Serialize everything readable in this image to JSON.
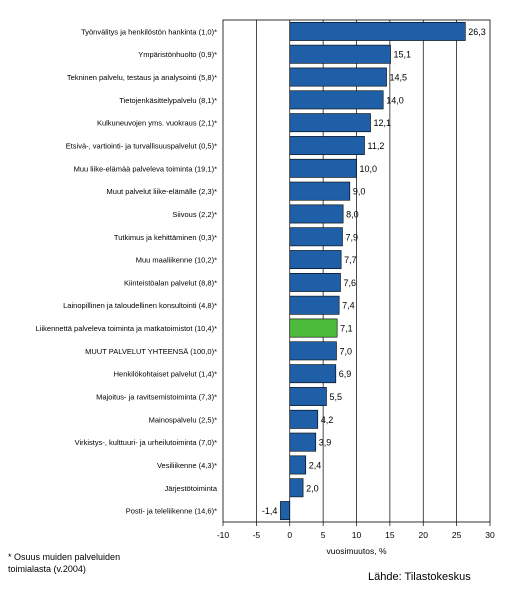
{
  "chart_data": {
    "type": "bar",
    "orientation": "horizontal",
    "categories": [
      "Työnvälitys ja henkilöstön hankinta (1,0)*",
      "Ympäristönhuolto (0,9)*",
      "Tekninen palvelu, testaus ja analysointi (5,8)*",
      "Tietojenkäsittelypalvelu (8,1)*",
      "Kulkuneuvojen yms. vuokraus (2,1)*",
      "Etsivä-, vartiointi- ja turvallisuuspalvelut (0,5)*",
      "Muu liike-elämää palveleva toiminta (19,1)*",
      "Muut palvelut liike-elämälle (2,3)*",
      "Siivous (2,2)*",
      "Tutkimus ja kehittäminen (0,3)*",
      "Muu maaliikenne (10,2)*",
      "Kiinteistöalan palvelut (8,8)*",
      "Lainopillinen ja taloudellinen konsultointi (4,8)*",
      "Liikennettä palveleva toiminta ja matkatoimistot (10,4)*",
      "MUUT PALVELUT YHTEENSÄ (100,0)*",
      "Henkilökohtaiset palvelut (1,4)*",
      "Majoitus- ja ravitsemistoiminta (7,3)*",
      "Mainospalvelu (2,5)*",
      "Virkistys-, kulttuuri- ja urheilutoiminta (7,0)*",
      "Vesiliikenne (4,3)*",
      "Järjestötoiminta",
      "Posti- ja teleliikenne (14,6)*"
    ],
    "values": [
      26.3,
      15.1,
      14.5,
      14.0,
      12.1,
      11.2,
      10.0,
      9.0,
      8.0,
      7.9,
      7.7,
      7.6,
      7.4,
      7.1,
      7.0,
      6.9,
      5.5,
      4.2,
      3.9,
      2.4,
      2.0,
      -1.4
    ],
    "value_labels": [
      "26,3",
      "15,1",
      "14,5",
      "14,0",
      "12,1",
      "11,2",
      "10,0",
      "9,0",
      "8,0",
      "7,9",
      "7,7",
      "7,6",
      "7,4",
      "7,1",
      "7,0",
      "6,9",
      "5,5",
      "4,2",
      "3,9",
      "2,4",
      "2,0",
      "-1,4"
    ],
    "highlight_index": 13,
    "xlim": [
      -10,
      30
    ],
    "xticks": [
      -10,
      -5,
      0,
      5,
      10,
      15,
      20,
      25,
      30
    ],
    "xlabel": "vuosimuutos, %",
    "grid": "vertical",
    "colors": {
      "bar": "#1f5fa8",
      "highlight": "#4cbb3c",
      "bar_edge": "#000000"
    }
  },
  "footnote": {
    "line1": "* Osuus muiden palveluiden",
    "line2": "toimialasta (v.2004)"
  },
  "source": "Lähde: Tilastokeskus"
}
